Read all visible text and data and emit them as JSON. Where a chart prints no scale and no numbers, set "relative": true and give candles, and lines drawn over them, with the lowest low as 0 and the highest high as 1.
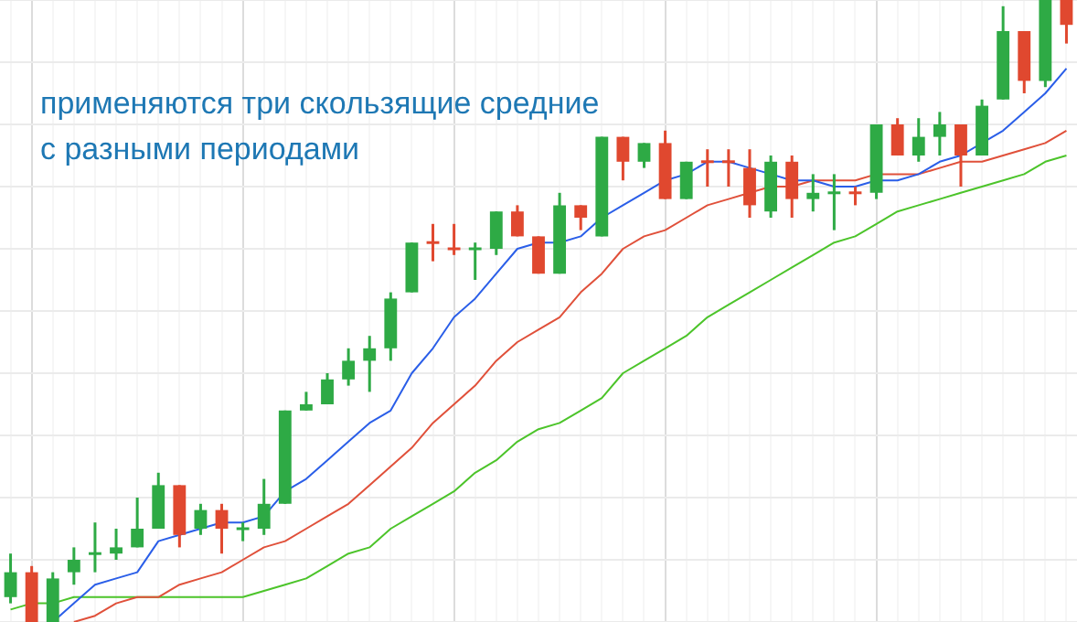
{
  "chart_data": {
    "type": "candlestick",
    "relative": true,
    "grid": true,
    "legend": false,
    "marker": "none",
    "annotations": [
      "применяются три скользящие средние с разными периодами"
    ],
    "categories": [
      null,
      null,
      null,
      null,
      null,
      null,
      null,
      null,
      null,
      null,
      null,
      null,
      null,
      null,
      null,
      null,
      null,
      null,
      null,
      null,
      null,
      null,
      null,
      null,
      null,
      null,
      null,
      null,
      null,
      null,
      null,
      null,
      null,
      null,
      null,
      null,
      null,
      null,
      null,
      null,
      null,
      null,
      null,
      null,
      null,
      null,
      null,
      null,
      null,
      null,
      null
    ],
    "ohlc": [
      [
        0.04,
        0.11,
        0.03,
        0.08
      ],
      [
        0.08,
        0.09,
        0,
        0
      ],
      [
        0,
        0.08,
        0,
        0.07
      ],
      [
        0.08,
        0.12,
        0.06,
        0.1
      ],
      [
        0.11,
        0.16,
        0.08,
        0.11
      ],
      [
        0.11,
        0.15,
        0.1,
        0.12
      ],
      [
        0.12,
        0.2,
        0.12,
        0.15
      ],
      [
        0.15,
        0.24,
        0.15,
        0.22
      ],
      [
        0.22,
        0.22,
        0.12,
        0.14
      ],
      [
        0.15,
        0.19,
        0.14,
        0.18
      ],
      [
        0.18,
        0.19,
        0.11,
        0.15
      ],
      [
        0.15,
        0.16,
        0.13,
        0.15
      ],
      [
        0.15,
        0.23,
        0.14,
        0.19
      ],
      [
        0.19,
        0.34,
        0.19,
        0.34
      ],
      [
        0.34,
        0.37,
        0.34,
        0.35
      ],
      [
        0.35,
        0.4,
        0.35,
        0.39
      ],
      [
        0.39,
        0.44,
        0.38,
        0.42
      ],
      [
        0.42,
        0.46,
        0.37,
        0.44
      ],
      [
        0.44,
        0.53,
        0.42,
        0.52
      ],
      [
        0.53,
        0.61,
        0.53,
        0.61
      ],
      [
        0.61,
        0.64,
        0.58,
        0.61
      ],
      [
        0.6,
        0.64,
        0.59,
        0.6
      ],
      [
        0.6,
        0.61,
        0.55,
        0.6
      ],
      [
        0.6,
        0.66,
        0.59,
        0.66
      ],
      [
        0.66,
        0.67,
        0.62,
        0.62
      ],
      [
        0.62,
        0.62,
        0.56,
        0.56
      ],
      [
        0.56,
        0.69,
        0.56,
        0.67
      ],
      [
        0.67,
        0.67,
        0.63,
        0.65
      ],
      [
        0.62,
        0.78,
        0.62,
        0.78
      ],
      [
        0.78,
        0.78,
        0.71,
        0.74
      ],
      [
        0.74,
        0.77,
        0.73,
        0.77
      ],
      [
        0.77,
        0.79,
        0.68,
        0.68
      ],
      [
        0.68,
        0.74,
        0.68,
        0.74
      ],
      [
        0.74,
        0.76,
        0.7,
        0.74
      ],
      [
        0.74,
        0.76,
        0.7,
        0.74
      ],
      [
        0.73,
        0.76,
        0.65,
        0.67
      ],
      [
        0.66,
        0.75,
        0.65,
        0.74
      ],
      [
        0.74,
        0.75,
        0.65,
        0.68
      ],
      [
        0.68,
        0.72,
        0.66,
        0.69
      ],
      [
        0.69,
        0.72,
        0.63,
        0.69
      ],
      [
        0.69,
        0.7,
        0.67,
        0.69
      ],
      [
        0.69,
        0.8,
        0.68,
        0.8
      ],
      [
        0.8,
        0.81,
        0.75,
        0.75
      ],
      [
        0.75,
        0.81,
        0.74,
        0.78
      ],
      [
        0.78,
        0.82,
        0.75,
        0.8
      ],
      [
        0.8,
        0.8,
        0.7,
        0.75
      ],
      [
        0.75,
        0.84,
        0.75,
        0.83
      ],
      [
        0.84,
        0.99,
        0.84,
        0.95
      ],
      [
        0.95,
        0.95,
        0.85,
        0.87
      ],
      [
        0.87,
        1,
        0.86,
        1
      ],
      [
        1,
        1,
        0.93,
        0.96
      ]
    ],
    "colors": [
      "#2eaa45",
      "#e0482f",
      "#2eaa45",
      "#2eaa45",
      "#2eaa45",
      "#2eaa45",
      "#2eaa45",
      "#2eaa45",
      "#e0482f",
      "#2eaa45",
      "#e0482f",
      "#2eaa45",
      "#2eaa45",
      "#2eaa45",
      "#2eaa45",
      "#2eaa45",
      "#2eaa45",
      "#2eaa45",
      "#2eaa45",
      "#2eaa45",
      "#e0482f",
      "#e0482f",
      "#2eaa45",
      "#2eaa45",
      "#e0482f",
      "#e0482f",
      "#2eaa45",
      "#e0482f",
      "#2eaa45",
      "#e0482f",
      "#2eaa45",
      "#e0482f",
      "#2eaa45",
      "#e0482f",
      "#e0482f",
      "#e0482f",
      "#2eaa45",
      "#e0482f",
      "#2eaa45",
      "#2eaa45",
      "#e0482f",
      "#2eaa45",
      "#e0482f",
      "#2eaa45",
      "#2eaa45",
      "#e0482f",
      "#2eaa45",
      "#2eaa45",
      "#e0482f",
      "#2eaa45",
      "#e0482f"
    ],
    "series": [
      {
        "type": "line",
        "color": "#2a5ee8",
        "values": [
          null,
          null,
          0,
          0.03,
          0.06,
          0.07,
          0.08,
          0.13,
          0.14,
          0.15,
          0.16,
          0.16,
          0.17,
          0.21,
          0.23,
          0.26,
          0.29,
          0.32,
          0.34,
          0.4,
          0.44,
          0.49,
          0.52,
          0.56,
          0.6,
          0.61,
          0.61,
          0.62,
          0.65,
          0.67,
          0.69,
          0.71,
          0.72,
          0.74,
          0.74,
          0.73,
          0.72,
          0.71,
          0.71,
          0.7,
          0.7,
          0.71,
          0.71,
          0.72,
          0.74,
          0.75,
          0.77,
          0.79,
          0.82,
          0.85,
          0.89
        ]
      },
      {
        "type": "line",
        "color": "#e0503a",
        "values": [
          null,
          null,
          null,
          0,
          0.01,
          0.03,
          0.04,
          0.04,
          0.06,
          0.07,
          0.08,
          0.1,
          0.12,
          0.13,
          0.15,
          0.17,
          0.19,
          0.22,
          0.25,
          0.28,
          0.32,
          0.35,
          0.38,
          0.42,
          0.45,
          0.47,
          0.49,
          0.53,
          0.56,
          0.6,
          0.62,
          0.63,
          0.65,
          0.67,
          0.68,
          0.69,
          0.7,
          0.7,
          0.71,
          0.71,
          0.71,
          0.72,
          0.72,
          0.72,
          0.73,
          0.74,
          0.74,
          0.75,
          0.76,
          0.77,
          0.79
        ]
      },
      {
        "type": "line",
        "color": "#4cc42a",
        "values": [
          0.02,
          0.03,
          0.03,
          0.04,
          0.04,
          0.04,
          0.04,
          0.04,
          0.04,
          0.04,
          0.04,
          0.04,
          0.05,
          0.06,
          0.07,
          0.09,
          0.11,
          0.12,
          0.15,
          0.17,
          0.19,
          0.21,
          0.24,
          0.26,
          0.29,
          0.31,
          0.32,
          0.34,
          0.36,
          0.4,
          0.42,
          0.44,
          0.46,
          0.49,
          0.51,
          0.53,
          0.55,
          0.57,
          0.59,
          0.61,
          0.62,
          0.64,
          0.66,
          0.67,
          0.68,
          0.69,
          0.7,
          0.71,
          0.72,
          0.74,
          0.75
        ]
      }
    ]
  }
}
